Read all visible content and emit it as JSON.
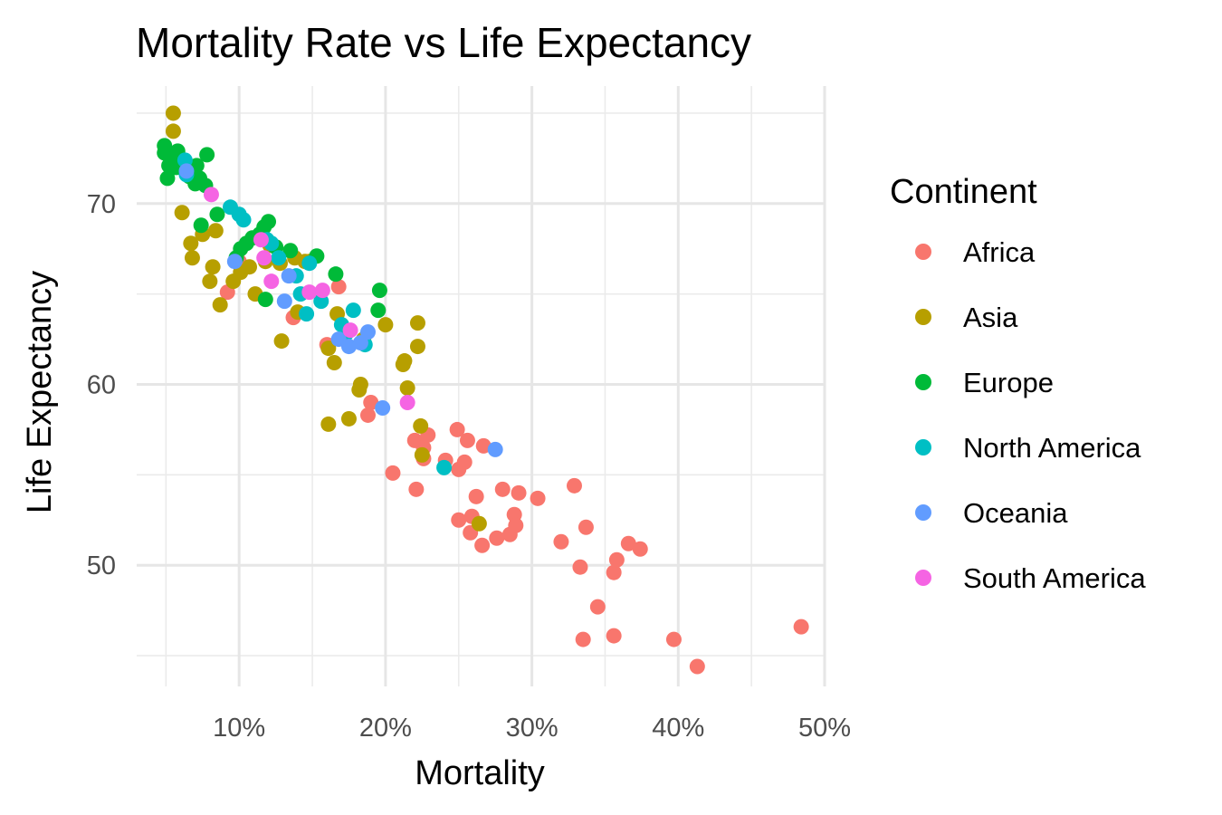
{
  "chart_data": {
    "type": "scatter",
    "title": "Mortality Rate vs Life Expectancy",
    "xlabel": "Mortality",
    "ylabel": "Life Expectancy",
    "xlim": [
      0.03,
      0.5
    ],
    "ylim": [
      43.3,
      76.5
    ],
    "x_ticks": [
      0.1,
      0.2,
      0.3,
      0.4,
      0.5
    ],
    "x_tick_labels": [
      "10%",
      "20%",
      "30%",
      "40%",
      "50%"
    ],
    "y_ticks": [
      50,
      60,
      70
    ],
    "y_tick_labels": [
      "50",
      "60",
      "70"
    ],
    "grid": true,
    "legend": {
      "title": "Continent",
      "position": "right"
    },
    "series": [
      {
        "name": "Africa",
        "color": "#F8766D",
        "points": [
          [
            0.092,
            65.1
          ],
          [
            0.1,
            66.8
          ],
          [
            0.137,
            63.7
          ],
          [
            0.16,
            62.2
          ],
          [
            0.168,
            65.4
          ],
          [
            0.188,
            58.3
          ],
          [
            0.19,
            59.0
          ],
          [
            0.205,
            55.1
          ],
          [
            0.22,
            56.9
          ],
          [
            0.221,
            54.2
          ],
          [
            0.226,
            56.5
          ],
          [
            0.226,
            55.9
          ],
          [
            0.229,
            57.2
          ],
          [
            0.241,
            55.8
          ],
          [
            0.249,
            57.5
          ],
          [
            0.25,
            52.5
          ],
          [
            0.25,
            55.3
          ],
          [
            0.254,
            55.7
          ],
          [
            0.256,
            56.9
          ],
          [
            0.258,
            51.8
          ],
          [
            0.259,
            52.7
          ],
          [
            0.262,
            53.8
          ],
          [
            0.266,
            51.1
          ],
          [
            0.267,
            56.6
          ],
          [
            0.276,
            51.5
          ],
          [
            0.28,
            54.2
          ],
          [
            0.285,
            51.7
          ],
          [
            0.288,
            52.8
          ],
          [
            0.289,
            52.2
          ],
          [
            0.291,
            54.0
          ],
          [
            0.304,
            53.7
          ],
          [
            0.32,
            51.3
          ],
          [
            0.329,
            54.4
          ],
          [
            0.333,
            49.9
          ],
          [
            0.335,
            45.9
          ],
          [
            0.337,
            52.1
          ],
          [
            0.345,
            47.7
          ],
          [
            0.356,
            49.6
          ],
          [
            0.356,
            46.1
          ],
          [
            0.358,
            50.3
          ],
          [
            0.366,
            51.2
          ],
          [
            0.374,
            50.9
          ],
          [
            0.397,
            45.9
          ],
          [
            0.413,
            44.4
          ],
          [
            0.484,
            46.6
          ]
        ]
      },
      {
        "name": "Asia",
        "color": "#B79F00",
        "points": [
          [
            0.055,
            75.0
          ],
          [
            0.055,
            74.0
          ],
          [
            0.058,
            72.8
          ],
          [
            0.061,
            69.5
          ],
          [
            0.067,
            67.8
          ],
          [
            0.068,
            67.0
          ],
          [
            0.075,
            68.3
          ],
          [
            0.08,
            65.7
          ],
          [
            0.082,
            66.5
          ],
          [
            0.084,
            68.5
          ],
          [
            0.087,
            64.4
          ],
          [
            0.096,
            65.7
          ],
          [
            0.101,
            66.2
          ],
          [
            0.107,
            66.5
          ],
          [
            0.111,
            65.0
          ],
          [
            0.118,
            66.8
          ],
          [
            0.121,
            67.7
          ],
          [
            0.128,
            66.7
          ],
          [
            0.129,
            62.4
          ],
          [
            0.138,
            67.0
          ],
          [
            0.14,
            64.0
          ],
          [
            0.145,
            66.8
          ],
          [
            0.148,
            66.8
          ],
          [
            0.161,
            62.0
          ],
          [
            0.161,
            57.8
          ],
          [
            0.165,
            61.2
          ],
          [
            0.167,
            63.9
          ],
          [
            0.175,
            58.1
          ],
          [
            0.182,
            59.7
          ],
          [
            0.183,
            60.0
          ],
          [
            0.185,
            62.5
          ],
          [
            0.2,
            63.3
          ],
          [
            0.212,
            61.1
          ],
          [
            0.213,
            61.3
          ],
          [
            0.215,
            59.8
          ],
          [
            0.222,
            62.1
          ],
          [
            0.222,
            63.4
          ],
          [
            0.224,
            57.7
          ],
          [
            0.225,
            56.1
          ],
          [
            0.264,
            52.3
          ]
        ]
      },
      {
        "name": "Europe",
        "color": "#00BA38",
        "points": [
          [
            0.049,
            73.2
          ],
          [
            0.049,
            72.8
          ],
          [
            0.051,
            71.4
          ],
          [
            0.052,
            72.1
          ],
          [
            0.055,
            72.5
          ],
          [
            0.057,
            72.0
          ],
          [
            0.058,
            72.9
          ],
          [
            0.06,
            72.3
          ],
          [
            0.066,
            71.5
          ],
          [
            0.067,
            71.7
          ],
          [
            0.07,
            71.1
          ],
          [
            0.071,
            72.1
          ],
          [
            0.073,
            71.4
          ],
          [
            0.074,
            68.8
          ],
          [
            0.077,
            71.0
          ],
          [
            0.078,
            72.7
          ],
          [
            0.085,
            69.4
          ],
          [
            0.098,
            67.0
          ],
          [
            0.101,
            67.5
          ],
          [
            0.105,
            67.8
          ],
          [
            0.109,
            68.1
          ],
          [
            0.114,
            68.3
          ],
          [
            0.117,
            68.7
          ],
          [
            0.118,
            64.7
          ],
          [
            0.12,
            69.0
          ],
          [
            0.125,
            67.6
          ],
          [
            0.135,
            67.4
          ],
          [
            0.153,
            67.1
          ],
          [
            0.166,
            66.1
          ],
          [
            0.195,
            64.1
          ],
          [
            0.196,
            65.2
          ]
        ]
      },
      {
        "name": "North America",
        "color": "#00BFC4",
        "points": [
          [
            0.063,
            72.4
          ],
          [
            0.064,
            71.6
          ],
          [
            0.094,
            69.8
          ],
          [
            0.1,
            69.4
          ],
          [
            0.103,
            69.1
          ],
          [
            0.119,
            68.0
          ],
          [
            0.122,
            67.8
          ],
          [
            0.127,
            67.0
          ],
          [
            0.139,
            66.0
          ],
          [
            0.142,
            65.0
          ],
          [
            0.146,
            63.9
          ],
          [
            0.148,
            66.7
          ],
          [
            0.156,
            64.6
          ],
          [
            0.17,
            63.3
          ],
          [
            0.173,
            62.8
          ],
          [
            0.178,
            64.1
          ],
          [
            0.186,
            62.2
          ],
          [
            0.24,
            55.4
          ]
        ]
      },
      {
        "name": "Oceania",
        "color": "#619CFF",
        "points": [
          [
            0.064,
            71.8
          ],
          [
            0.097,
            66.8
          ],
          [
            0.131,
            64.6
          ],
          [
            0.134,
            66.0
          ],
          [
            0.168,
            62.5
          ],
          [
            0.175,
            62.1
          ],
          [
            0.183,
            62.3
          ],
          [
            0.188,
            62.9
          ],
          [
            0.198,
            58.7
          ],
          [
            0.275,
            56.4
          ]
        ]
      },
      {
        "name": "South America",
        "color": "#F564E3",
        "points": [
          [
            0.081,
            70.5
          ],
          [
            0.115,
            68.0
          ],
          [
            0.117,
            67.0
          ],
          [
            0.122,
            65.7
          ],
          [
            0.148,
            65.1
          ],
          [
            0.157,
            65.2
          ],
          [
            0.176,
            63.0
          ],
          [
            0.215,
            59.0
          ]
        ]
      }
    ]
  }
}
